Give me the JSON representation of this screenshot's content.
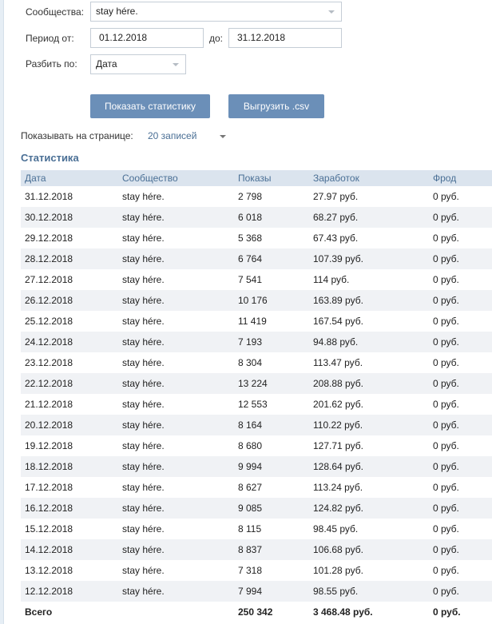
{
  "filters": {
    "community_label": "Сообщества:",
    "community_value": "stay hére.",
    "period_from_label": "Период от:",
    "period_from_value": "01.12.2018",
    "period_to_label": "до:",
    "period_to_value": "31.12.2018",
    "split_label": "Разбить по:",
    "split_value": "Дата"
  },
  "buttons": {
    "show_stats": "Показать статистику",
    "export_csv": "Выгрузить .csv"
  },
  "pagination": {
    "label": "Показывать на странице:",
    "value": "20 записей"
  },
  "stats": {
    "title": "Статистика",
    "columns": [
      "Дата",
      "Сообщество",
      "Показы",
      "Заработок",
      "Фрод"
    ],
    "rows": [
      [
        "31.12.2018",
        "stay hére.",
        "2 798",
        "27.97 руб.",
        "0 руб."
      ],
      [
        "30.12.2018",
        "stay hére.",
        "6 018",
        "68.27 руб.",
        "0 руб."
      ],
      [
        "29.12.2018",
        "stay hére.",
        "5 368",
        "67.43 руб.",
        "0 руб."
      ],
      [
        "28.12.2018",
        "stay hére.",
        "6 764",
        "107.39 руб.",
        "0 руб."
      ],
      [
        "27.12.2018",
        "stay hére.",
        "7 541",
        "114 руб.",
        "0 руб."
      ],
      [
        "26.12.2018",
        "stay hére.",
        "10 176",
        "163.89 руб.",
        "0 руб."
      ],
      [
        "25.12.2018",
        "stay hére.",
        "11 419",
        "167.54 руб.",
        "0 руб."
      ],
      [
        "24.12.2018",
        "stay hére.",
        "7 193",
        "94.88 руб.",
        "0 руб."
      ],
      [
        "23.12.2018",
        "stay hére.",
        "8 304",
        "113.47 руб.",
        "0 руб."
      ],
      [
        "22.12.2018",
        "stay hére.",
        "13 224",
        "208.88 руб.",
        "0 руб."
      ],
      [
        "21.12.2018",
        "stay hére.",
        "12 553",
        "201.62 руб.",
        "0 руб."
      ],
      [
        "20.12.2018",
        "stay hére.",
        "8 164",
        "110.22 руб.",
        "0 руб."
      ],
      [
        "19.12.2018",
        "stay hére.",
        "8 680",
        "127.71 руб.",
        "0 руб."
      ],
      [
        "18.12.2018",
        "stay hére.",
        "9 994",
        "128.64 руб.",
        "0 руб."
      ],
      [
        "17.12.2018",
        "stay hére.",
        "8 627",
        "113.24 руб.",
        "0 руб."
      ],
      [
        "16.12.2018",
        "stay hére.",
        "9 085",
        "124.82 руб.",
        "0 руб."
      ],
      [
        "15.12.2018",
        "stay hére.",
        "8 115",
        "98.45 руб.",
        "0 руб."
      ],
      [
        "14.12.2018",
        "stay hére.",
        "8 837",
        "106.68 руб.",
        "0 руб."
      ],
      [
        "13.12.2018",
        "stay hére.",
        "7 318",
        "101.28 руб.",
        "0 руб."
      ],
      [
        "12.12.2018",
        "stay hére.",
        "7 994",
        "98.55 руб.",
        "0 руб."
      ]
    ],
    "total": [
      "Всего",
      "",
      "250 342",
      "3 468.48 руб.",
      "0 руб."
    ]
  }
}
